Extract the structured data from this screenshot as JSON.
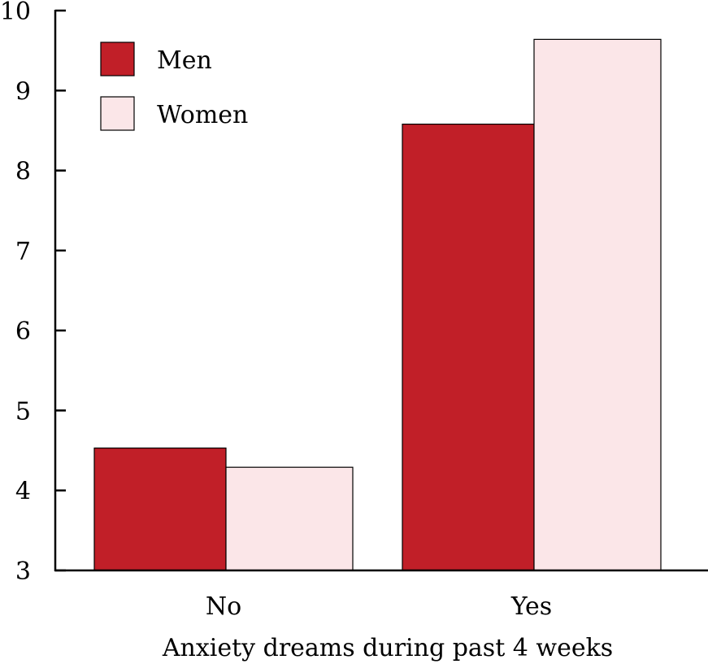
{
  "chart_data": {
    "type": "bar",
    "title": "",
    "xlabel": "Anxiety dreams during past 4 weeks",
    "ylabel": "",
    "categories": [
      "No",
      "Yes"
    ],
    "series": [
      {
        "name": "Men",
        "values": [
          4.53,
          8.58
        ]
      },
      {
        "name": "Women",
        "values": [
          4.29,
          9.64
        ]
      }
    ],
    "ylim": [
      3,
      10
    ],
    "yticks": [
      "3",
      "4",
      "5",
      "6",
      "7",
      "8",
      "9",
      "10"
    ],
    "grid": false,
    "legend_position": "top-left"
  },
  "colors": {
    "Men": "#c11f28",
    "Women": "#fbe6e8",
    "bar_stroke": "#000000",
    "axis": "#000000"
  }
}
